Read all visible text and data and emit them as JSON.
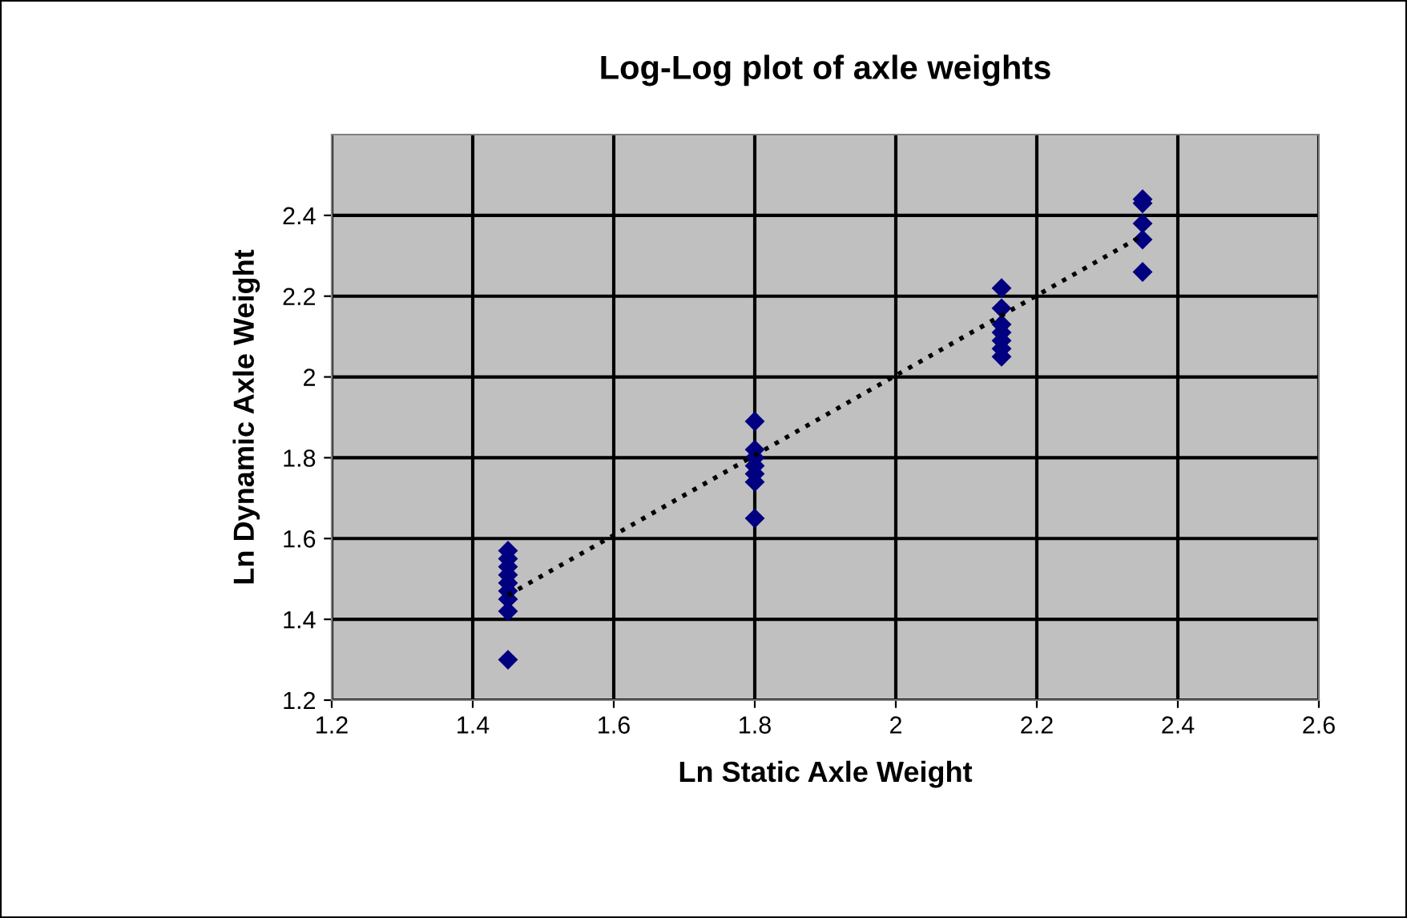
{
  "chart_data": {
    "type": "scatter",
    "title": "Log-Log plot of axle weights",
    "xlabel": "Ln Static Axle Weight",
    "ylabel": "Ln Dynamic Axle Weight",
    "series": [
      {
        "color": "#000080",
        "marker": "diamond",
        "x": [
          1.45,
          1.45,
          1.45,
          1.45,
          1.45,
          1.45,
          1.45,
          1.45,
          1.45,
          1.8,
          1.8,
          1.8,
          1.8,
          1.8,
          1.8,
          1.8,
          2.15,
          2.15,
          2.15,
          2.15,
          2.15,
          2.15,
          2.15,
          2.35,
          2.35,
          2.35,
          2.35,
          2.35
        ],
        "values": [
          1.57,
          1.55,
          1.53,
          1.51,
          1.49,
          1.47,
          1.45,
          1.42,
          1.3,
          1.89,
          1.82,
          1.8,
          1.78,
          1.76,
          1.74,
          1.65,
          2.22,
          2.17,
          2.13,
          2.11,
          2.09,
          2.07,
          2.05,
          2.44,
          2.43,
          2.38,
          2.34,
          2.26
        ]
      },
      {
        "type": "line",
        "color": "#000000",
        "line_style": "dotted",
        "marker": "none",
        "x": [
          1.45,
          2.35
        ],
        "values": [
          1.46,
          2.35
        ]
      }
    ],
    "xlim": [
      1.2,
      2.6
    ],
    "ylim": [
      1.2,
      2.6
    ],
    "xticks": [
      1.2,
      1.4,
      1.6,
      1.8,
      2,
      2.2,
      2.4,
      2.6
    ],
    "yticks": [
      1.2,
      1.4,
      1.6,
      1.8,
      2,
      2.2,
      2.4
    ],
    "grid": true,
    "legend": false
  }
}
